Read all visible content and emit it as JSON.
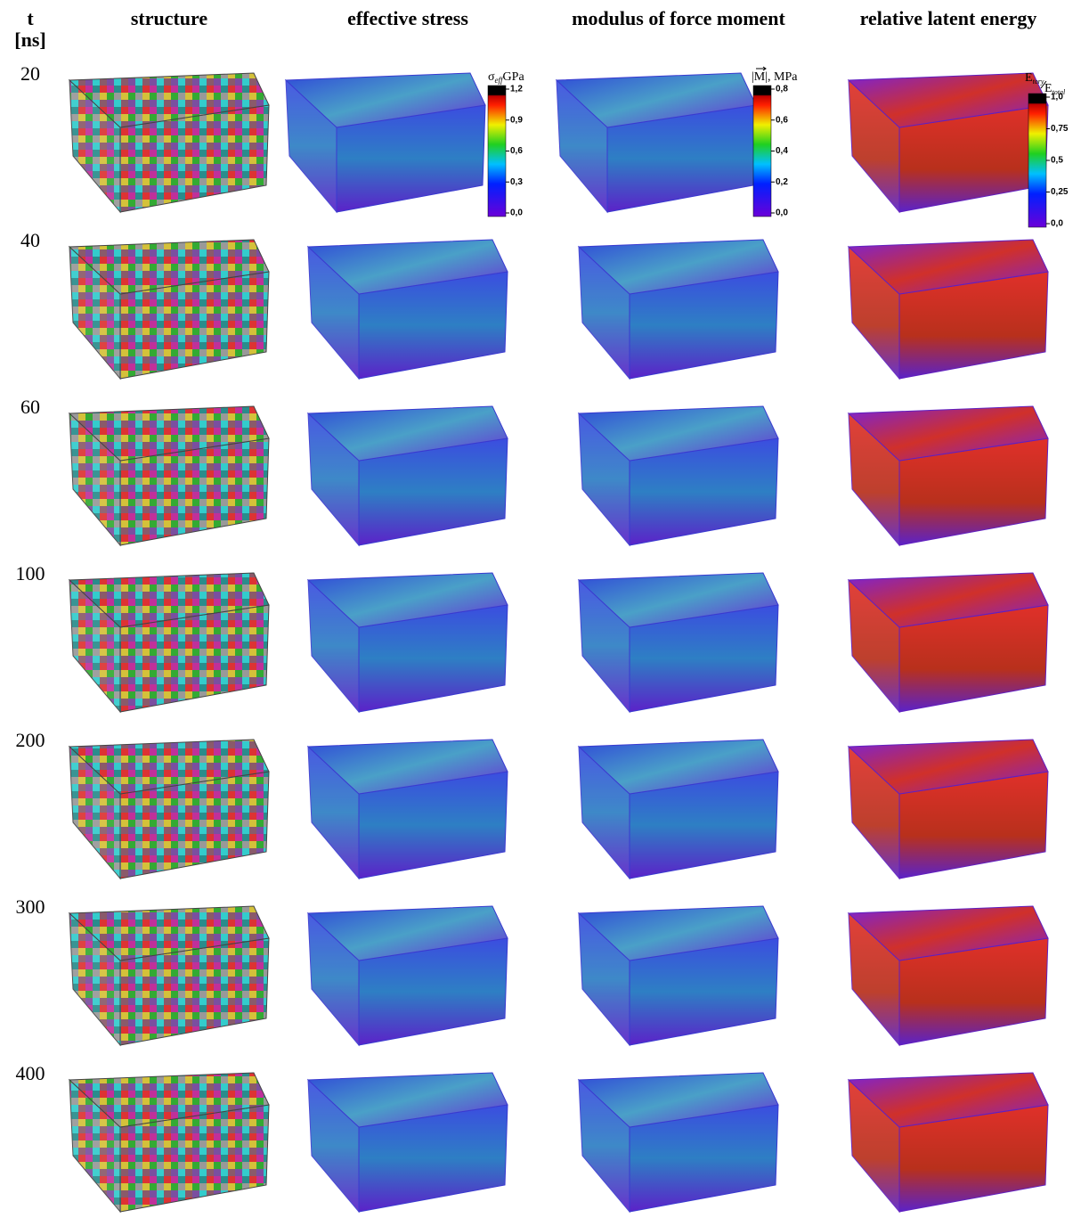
{
  "header": {
    "time_label": "t",
    "time_unit": "[ns]",
    "columns": [
      "structure",
      "effective stress",
      "modulus of force moment",
      "relative latent energy"
    ]
  },
  "rows": [
    "20",
    "40",
    "60",
    "100",
    "200",
    "300",
    "400"
  ],
  "colorbars": [
    {
      "symbol": "σ",
      "subscript": "eff",
      "unit": "GPa",
      "ticks": [
        "1,2",
        "0,9",
        "0,6",
        "0,3",
        "0,0"
      ]
    },
    {
      "label": "|M|, MPa",
      "ticks": [
        "0,8",
        "0,6",
        "0,4",
        "0,2",
        "0,0"
      ]
    },
    {
      "numerator": "E",
      "numerator_sub": "tory",
      "denominator": "E",
      "denominator_sub": "total",
      "ticks": [
        "1,0",
        "0,75",
        "0,5",
        "0,25",
        "0,0"
      ]
    }
  ]
}
